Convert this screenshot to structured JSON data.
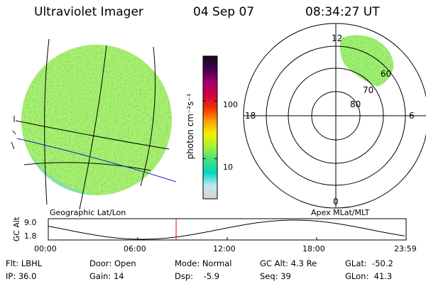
{
  "header": {
    "title": "Ultraviolet Imager",
    "date": "04 Sep 07",
    "time": "08:34:27 UT"
  },
  "colorbar": {
    "unit_label": "photon cm⁻²s⁻¹",
    "ticks": [
      "100",
      "10"
    ],
    "scale": "log",
    "range": [
      2,
      600
    ],
    "colors": [
      "#d4d4d4",
      "#c0e8f0",
      "#00d8c0",
      "#40e080",
      "#a8f030",
      "#f0f000",
      "#f8a000",
      "#f03000",
      "#d00040",
      "#a00070",
      "#400050",
      "#101010"
    ]
  },
  "left_panel": {
    "caption": "Geographic Lat/Lon",
    "disk_color": "#a8f070"
  },
  "right_panel": {
    "caption": "Apex MLat/MLT",
    "mlt_labels": {
      "top": "12",
      "bottom": "0",
      "left": "18",
      "right": "6"
    },
    "lat_labels": [
      "80",
      "70",
      "60"
    ],
    "patch_color": "#a0f070"
  },
  "timeline": {
    "y_axis_label": "GC Alt",
    "y_ticks": [
      "9.0",
      "1.8"
    ],
    "x_ticks": [
      "00:00",
      "06:00",
      "12:00",
      "18:00",
      "23:59"
    ],
    "current_time_hours": 8.574,
    "marker_color": "#ff0000"
  },
  "footer": {
    "filter": "Flt: LBHL",
    "ip": "IP: 36.0",
    "door": "Door: Open",
    "gain": "Gain: 14",
    "mode": "Mode: Normal",
    "dsp": "Dsp:    -5.9",
    "gc_alt": "GC Alt: 4.3 Re",
    "seq": "Seq: 39",
    "glat": "GLat:  -50.2",
    "glon": "GLon:  41.3"
  }
}
